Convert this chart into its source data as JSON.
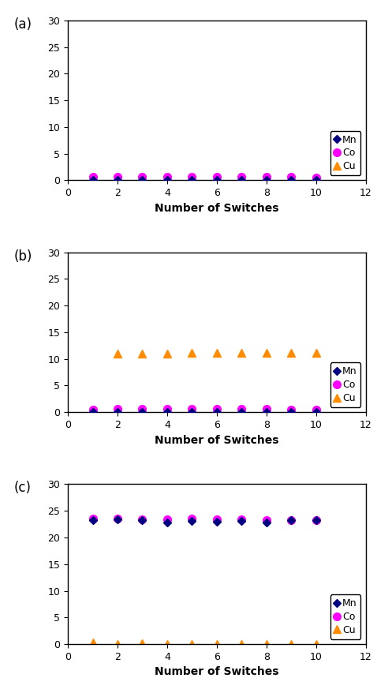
{
  "x": [
    1,
    2,
    3,
    4,
    5,
    6,
    7,
    8,
    9,
    10
  ],
  "subplots": [
    {
      "label": "(a)",
      "Mn": [
        0.05,
        0.05,
        0.05,
        0.05,
        0.05,
        0.05,
        0.05,
        0.05,
        0.05,
        0.05
      ],
      "Co": [
        0.6,
        0.65,
        0.6,
        0.6,
        0.6,
        0.6,
        0.6,
        0.6,
        0.6,
        0.55
      ],
      "Cu": [
        0.02,
        0.02,
        0.02,
        0.02,
        0.02,
        0.02,
        0.02,
        0.02,
        0.02,
        0.02
      ]
    },
    {
      "label": "(b)",
      "Mn": [
        0.05,
        0.05,
        0.05,
        0.05,
        0.05,
        0.05,
        0.05,
        0.05,
        0.05,
        0.05
      ],
      "Co": [
        0.55,
        0.6,
        0.6,
        0.6,
        0.6,
        0.6,
        0.6,
        0.6,
        0.55,
        0.55
      ],
      "Cu": [
        0.0,
        11.0,
        11.0,
        11.0,
        11.1,
        11.1,
        11.1,
        11.1,
        11.1,
        11.1
      ]
    },
    {
      "label": "(c)",
      "Mn": [
        23.3,
        23.4,
        23.3,
        22.8,
        23.1,
        23.0,
        23.1,
        22.8,
        23.2,
        23.2
      ],
      "Co": [
        23.5,
        23.5,
        23.4,
        23.4,
        23.5,
        23.4,
        23.4,
        23.3,
        23.3,
        23.3
      ],
      "Cu": [
        0.3,
        0.0,
        0.1,
        0.0,
        0.0,
        0.0,
        0.0,
        0.0,
        0.0,
        0.0
      ]
    }
  ],
  "ylim": [
    0,
    30
  ],
  "xlim": [
    0,
    12
  ],
  "yticks": [
    0,
    5,
    10,
    15,
    20,
    25,
    30
  ],
  "xticks": [
    0,
    2,
    4,
    6,
    8,
    10,
    12
  ],
  "xlabel": "Number of Switches",
  "mn_color": "#000080",
  "co_color": "#FF00FF",
  "cu_color": "#FF8C00",
  "mn_marker": "D",
  "co_marker": "o",
  "cu_marker": "^",
  "mn_markersize": 5,
  "co_markersize": 7,
  "cu_markersize": 7,
  "legend_labels": [
    "Mn",
    "Co",
    "Cu"
  ],
  "legend_fontsize": 9,
  "tick_fontsize": 9,
  "xlabel_fontsize": 10,
  "label_fontsize": 12,
  "bg_color": "#ffffff"
}
